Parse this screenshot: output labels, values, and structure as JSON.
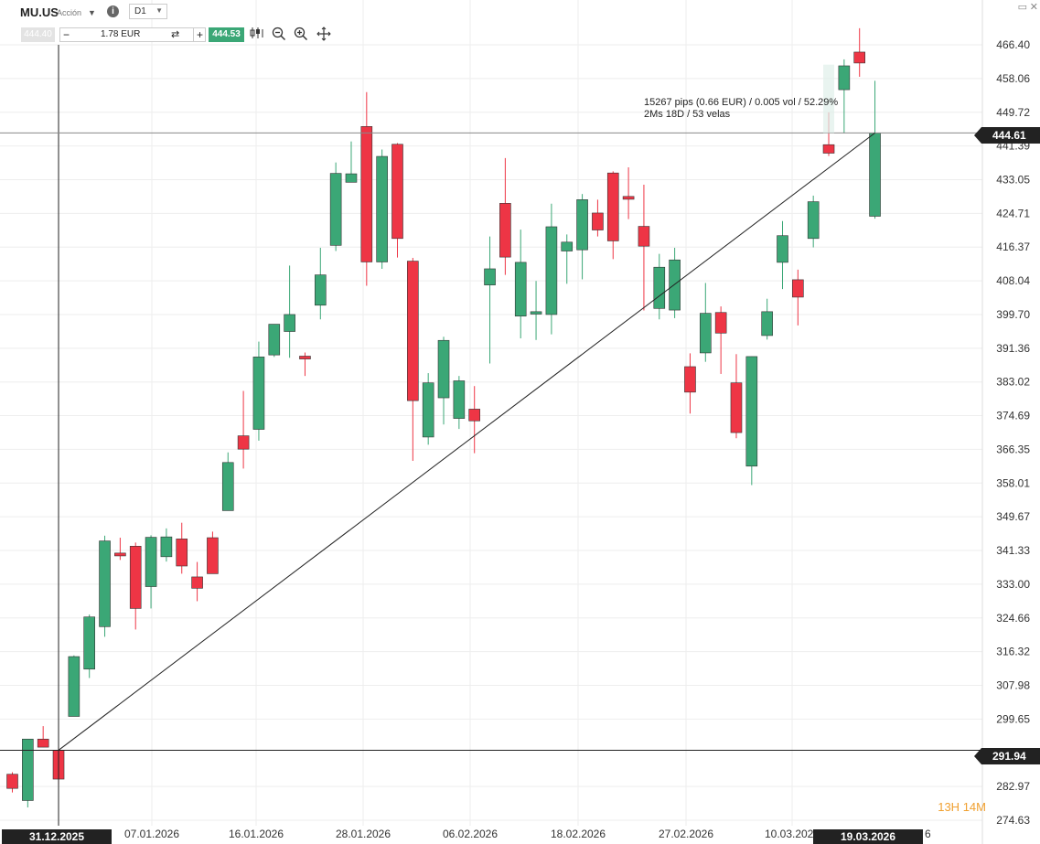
{
  "header": {
    "symbol": "MU.US",
    "instrument_type": "Acción",
    "timeframe": "D1",
    "sell_price": "444.40",
    "quantity": "1.78 EUR",
    "buy_price": "444.53",
    "minus_label": "−",
    "plus_label": "+",
    "swap_icon": "swap-icon",
    "tools": [
      "candle-type-icon",
      "zoom-out-icon",
      "zoom-in-icon",
      "crosshair-move-icon"
    ]
  },
  "measure": {
    "line1": "15267 pips (0.66 EUR) / 0.005 vol / 52.29%",
    "line2": "2Ms 18D / 53 velas"
  },
  "price_badges": {
    "current": "444.61",
    "start": "291.94"
  },
  "date_badges": {
    "start": "31.12.2025",
    "end": "19.03.2026"
  },
  "timer": {
    "hours": "13H",
    "minutes": "14M"
  },
  "colors": {
    "up": "#3ba776",
    "down": "#ee3545",
    "grid": "#eeeeee",
    "badge": "#222222"
  },
  "chart_data": {
    "type": "candlestick",
    "y_ticks": [
      "466.40",
      "458.06",
      "449.72",
      "441.39",
      "433.05",
      "424.71",
      "416.37",
      "408.04",
      "399.70",
      "391.36",
      "383.02",
      "374.69",
      "366.35",
      "358.01",
      "349.67",
      "341.33",
      "333.00",
      "324.66",
      "316.32",
      "307.98",
      "299.65",
      "291.94",
      "282.97",
      "274.63"
    ],
    "x_ticks": [
      "07.01.2026",
      "16.01.2026",
      "28.01.2026",
      "06.02.2026",
      "18.02.2026",
      "27.02.2026",
      "10.03.2026"
    ],
    "ylim": [
      273.1,
      471.7
    ],
    "candles": [
      {
        "o": 286.0,
        "h": 286.5,
        "l": 281.5,
        "c": 282.5
      },
      {
        "o": 279.5,
        "h": 294.7,
        "l": 277.8,
        "c": 294.7
      },
      {
        "o": 294.7,
        "h": 297.9,
        "l": 292.7,
        "c": 292.7
      },
      {
        "o": 291.9,
        "h": 292.7,
        "l": 283.4,
        "c": 284.8
      },
      {
        "o": 300.3,
        "h": 315.4,
        "l": 300.3,
        "c": 315.1
      },
      {
        "o": 312.0,
        "h": 325.5,
        "l": 309.8,
        "c": 324.9
      },
      {
        "o": 322.5,
        "h": 345.0,
        "l": 320.0,
        "c": 343.7
      },
      {
        "o": 340.7,
        "h": 344.5,
        "l": 339.0,
        "c": 340.0
      },
      {
        "o": 342.4,
        "h": 343.3,
        "l": 321.8,
        "c": 327.0
      },
      {
        "o": 332.4,
        "h": 345.1,
        "l": 327.0,
        "c": 344.6
      },
      {
        "o": 339.8,
        "h": 346.8,
        "l": 338.6,
        "c": 344.7
      },
      {
        "o": 344.2,
        "h": 348.2,
        "l": 335.6,
        "c": 337.5
      },
      {
        "o": 334.8,
        "h": 338.5,
        "l": 328.8,
        "c": 332.0
      },
      {
        "o": 344.5,
        "h": 346.0,
        "l": 336.0,
        "c": 335.6
      },
      {
        "o": 351.2,
        "h": 365.6,
        "l": 351.2,
        "c": 363.1
      },
      {
        "o": 369.7,
        "h": 380.8,
        "l": 361.6,
        "c": 366.4
      },
      {
        "o": 371.3,
        "h": 393.0,
        "l": 368.5,
        "c": 389.2
      },
      {
        "o": 389.7,
        "h": 397.3,
        "l": 389.2,
        "c": 397.3
      },
      {
        "o": 395.5,
        "h": 411.8,
        "l": 389.0,
        "c": 399.7
      },
      {
        "o": 389.4,
        "h": 390.3,
        "l": 384.5,
        "c": 388.7
      },
      {
        "o": 402.0,
        "h": 416.2,
        "l": 398.5,
        "c": 409.5
      },
      {
        "o": 416.8,
        "h": 437.3,
        "l": 415.4,
        "c": 434.6
      },
      {
        "o": 432.4,
        "h": 442.5,
        "l": 432.4,
        "c": 434.5
      },
      {
        "o": 446.2,
        "h": 454.7,
        "l": 406.8,
        "c": 412.7
      },
      {
        "o": 412.7,
        "h": 440.5,
        "l": 411.0,
        "c": 438.8
      },
      {
        "o": 441.8,
        "h": 442.1,
        "l": 413.8,
        "c": 418.5
      },
      {
        "o": 412.9,
        "h": 413.7,
        "l": 363.5,
        "c": 378.4
      },
      {
        "o": 369.4,
        "h": 385.2,
        "l": 367.5,
        "c": 382.8
      },
      {
        "o": 379.1,
        "h": 394.2,
        "l": 372.5,
        "c": 393.3
      },
      {
        "o": 374.0,
        "h": 384.5,
        "l": 371.4,
        "c": 383.3
      },
      {
        "o": 376.3,
        "h": 382.0,
        "l": 365.4,
        "c": 373.4
      },
      {
        "o": 407.0,
        "h": 419.0,
        "l": 387.6,
        "c": 411.0
      },
      {
        "o": 427.2,
        "h": 438.4,
        "l": 409.5,
        "c": 413.9
      },
      {
        "o": 399.3,
        "h": 420.7,
        "l": 393.8,
        "c": 412.6
      },
      {
        "o": 399.8,
        "h": 408.0,
        "l": 393.4,
        "c": 400.4
      },
      {
        "o": 399.7,
        "h": 427.1,
        "l": 394.8,
        "c": 421.4
      },
      {
        "o": 415.4,
        "h": 419.5,
        "l": 407.3,
        "c": 417.6
      },
      {
        "o": 415.7,
        "h": 429.5,
        "l": 408.4,
        "c": 428.1
      },
      {
        "o": 424.8,
        "h": 428.1,
        "l": 419.0,
        "c": 420.6
      },
      {
        "o": 434.7,
        "h": 435.1,
        "l": 413.4,
        "c": 417.9
      },
      {
        "o": 428.9,
        "h": 436.1,
        "l": 423.3,
        "c": 428.2
      },
      {
        "o": 421.5,
        "h": 431.8,
        "l": 400.7,
        "c": 416.6
      },
      {
        "o": 401.2,
        "h": 414.7,
        "l": 398.5,
        "c": 411.4
      },
      {
        "o": 400.8,
        "h": 416.2,
        "l": 398.8,
        "c": 413.2
      },
      {
        "o": 386.8,
        "h": 390.1,
        "l": 375.2,
        "c": 380.5
      },
      {
        "o": 390.2,
        "h": 407.5,
        "l": 388.0,
        "c": 400.0
      },
      {
        "o": 400.2,
        "h": 401.7,
        "l": 385.0,
        "c": 395.1
      },
      {
        "o": 382.8,
        "h": 389.9,
        "l": 369.1,
        "c": 370.5
      },
      {
        "o": 362.2,
        "h": 389.3,
        "l": 357.5,
        "c": 389.3
      },
      {
        "o": 394.5,
        "h": 403.6,
        "l": 393.5,
        "c": 400.4
      },
      {
        "o": 412.6,
        "h": 422.8,
        "l": 406.0,
        "c": 419.2
      },
      {
        "o": 408.3,
        "h": 410.8,
        "l": 397.0,
        "c": 404.0
      },
      {
        "o": 418.5,
        "h": 429.1,
        "l": 416.3,
        "c": 427.6
      },
      {
        "o": 441.7,
        "h": 449.7,
        "l": 438.9,
        "c": 439.6
      },
      {
        "o": 455.3,
        "h": 462.8,
        "l": 444.5,
        "c": 461.2
      },
      {
        "o": 464.6,
        "h": 470.5,
        "l": 458.5,
        "c": 461.9
      },
      {
        "o": 424.0,
        "h": 457.5,
        "l": 423.4,
        "c": 444.6
      }
    ]
  }
}
